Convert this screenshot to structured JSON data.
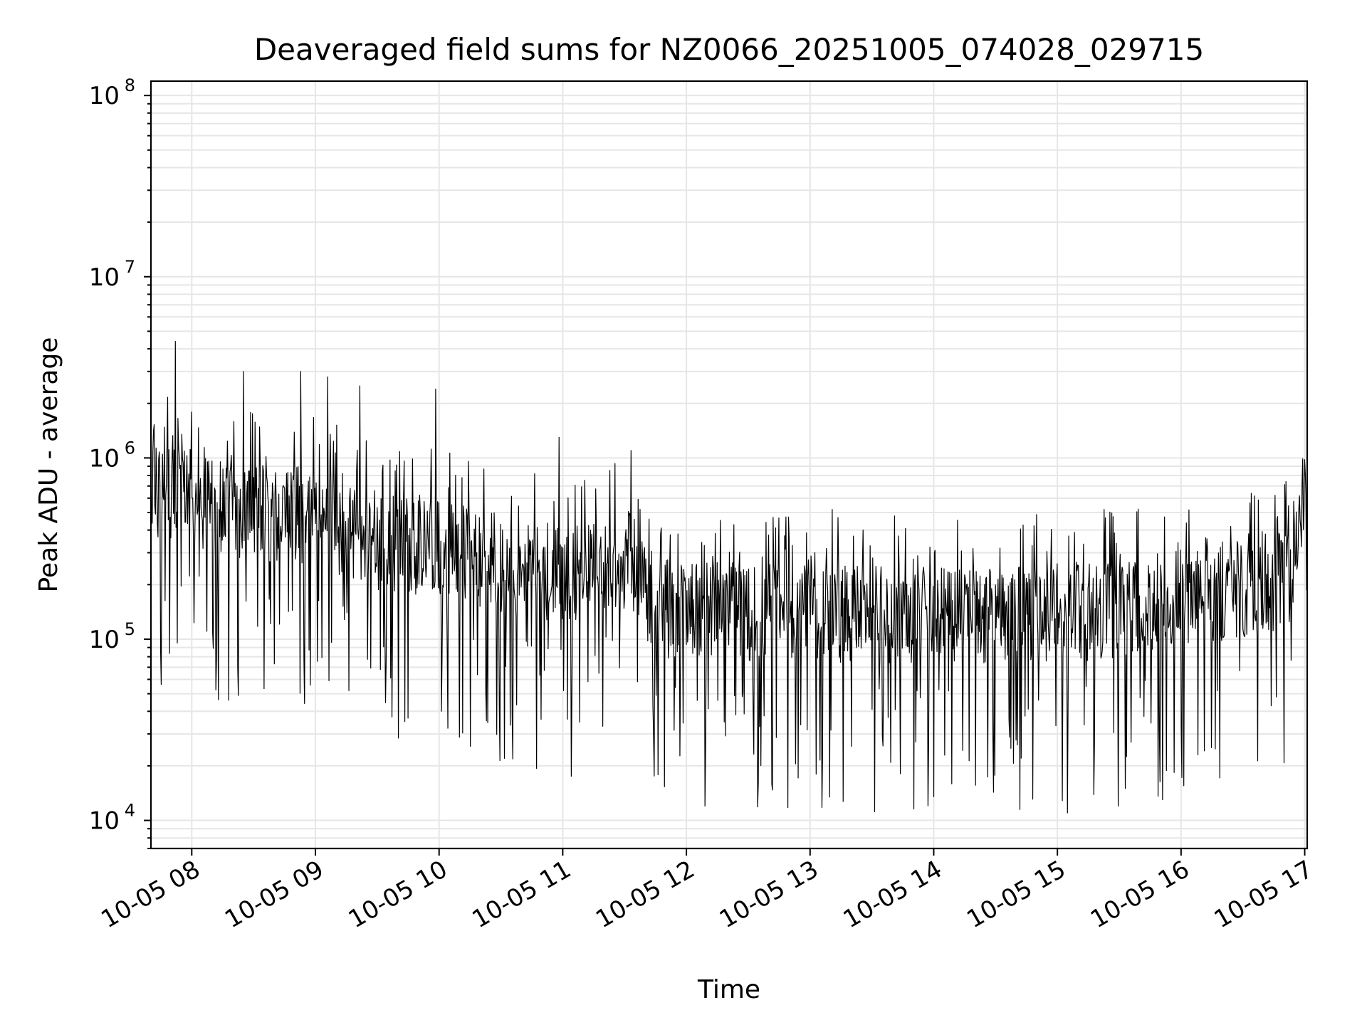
{
  "chart_data": {
    "type": "line",
    "title": "Deaveraged field sums for NZ0066_20251005_074028_029715",
    "xlabel": "Time",
    "ylabel": "Peak ADU - average",
    "yscale": "log",
    "ylim": [
      7000,
      120000000
    ],
    "xlim_hours": [
      7.67,
      17.02
    ],
    "grid": "both (major and minor)",
    "x_ticks": [
      {
        "hour": 8,
        "label": "10-05 08"
      },
      {
        "hour": 9,
        "label": "10-05 09"
      },
      {
        "hour": 10,
        "label": "10-05 10"
      },
      {
        "hour": 11,
        "label": "10-05 11"
      },
      {
        "hour": 12,
        "label": "10-05 12"
      },
      {
        "hour": 13,
        "label": "10-05 13"
      },
      {
        "hour": 14,
        "label": "10-05 14"
      },
      {
        "hour": 15,
        "label": "10-05 15"
      },
      {
        "hour": 16,
        "label": "10-05 16"
      },
      {
        "hour": 17,
        "label": "10-05 17"
      }
    ],
    "y_ticks": [
      {
        "value": 10000,
        "base": "10",
        "exp": "4"
      },
      {
        "value": 100000,
        "base": "10",
        "exp": "5"
      },
      {
        "value": 1000000,
        "base": "10",
        "exp": "6"
      },
      {
        "value": 10000000,
        "base": "10",
        "exp": "7"
      },
      {
        "value": 100000000,
        "base": "10",
        "exp": "8"
      }
    ],
    "series": [
      {
        "name": "peak_adu_minus_average",
        "color": "#000000",
        "envelope": [
          {
            "hour": 7.67,
            "median": 700000
          },
          {
            "hour": 8.0,
            "median": 600000
          },
          {
            "hour": 8.5,
            "median": 500000
          },
          {
            "hour": 9.0,
            "median": 480000
          },
          {
            "hour": 9.5,
            "median": 350000
          },
          {
            "hour": 10.0,
            "median": 320000
          },
          {
            "hour": 10.5,
            "median": 260000
          },
          {
            "hour": 11.0,
            "median": 230000
          },
          {
            "hour": 11.55,
            "median": 280000
          },
          {
            "hour": 11.7,
            "median": 150000
          },
          {
            "hour": 12.5,
            "median": 140000
          },
          {
            "hour": 13.5,
            "median": 140000
          },
          {
            "hour": 14.5,
            "median": 135000
          },
          {
            "hour": 15.5,
            "median": 145000
          },
          {
            "hour": 16.5,
            "median": 190000
          },
          {
            "hour": 16.9,
            "median": 220000
          },
          {
            "hour": 17.0,
            "median": 550000
          },
          {
            "hour": 17.02,
            "median": 250000
          }
        ],
        "peaks": [
          {
            "hour": 7.87,
            "value": 4400000
          },
          {
            "hour": 8.42,
            "value": 3000000
          },
          {
            "hour": 8.88,
            "value": 3000000
          },
          {
            "hour": 9.1,
            "value": 2800000
          },
          {
            "hour": 9.36,
            "value": 2500000
          },
          {
            "hour": 9.97,
            "value": 2400000
          },
          {
            "hour": 10.97,
            "value": 1300000
          },
          {
            "hour": 11.55,
            "value": 1100000
          },
          {
            "hour": 12.7,
            "value": 470000
          },
          {
            "hour": 13.18,
            "value": 520000
          },
          {
            "hour": 15.38,
            "value": 520000
          },
          {
            "hour": 16.98,
            "value": 720000
          }
        ],
        "dips": [
          {
            "hour": 9.27,
            "value": 52000
          },
          {
            "hour": 10.53,
            "value": 22000
          },
          {
            "hour": 11.07,
            "value": 17500
          },
          {
            "hour": 12.15,
            "value": 12000
          },
          {
            "hour": 13.05,
            "value": 18000
          },
          {
            "hour": 14.0,
            "value": 13500
          },
          {
            "hour": 15.08,
            "value": 11000
          },
          {
            "hour": 15.55,
            "value": 15000
          },
          {
            "hour": 15.85,
            "value": 13000
          }
        ],
        "approx_sample_count": 1800
      }
    ]
  }
}
